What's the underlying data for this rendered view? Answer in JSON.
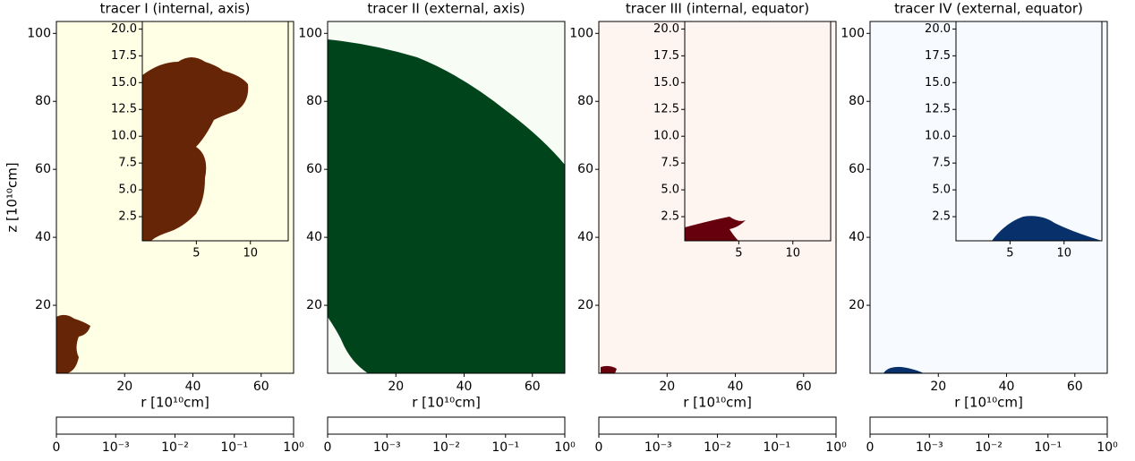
{
  "chart_data": [
    {
      "type": "heatmap",
      "title": "tracer I (internal, axis)",
      "xlabel": "r [10¹⁰cm]",
      "ylabel": "z [10¹⁰cm]",
      "xlim": [
        0,
        69.5
      ],
      "ylim": [
        0,
        103.5
      ],
      "xticks": [
        20,
        40,
        60
      ],
      "yticks": [
        20,
        40,
        60,
        80,
        100
      ],
      "colors": [
        "#ffffe5",
        "#fe9929",
        "#662506"
      ],
      "colorbar": {
        "scale": "symlog",
        "linthresh": 0.001,
        "ticks": [
          0,
          {
            "value": 0.001,
            "label": "10⁻³"
          },
          {
            "value": 0.01,
            "label": "10⁻²"
          },
          {
            "value": 0.1,
            "label": "10⁻¹"
          },
          {
            "value": 1,
            "label": "10⁰"
          }
        ]
      },
      "inset": {
        "xlim": [
          0,
          13.5
        ],
        "ylim": [
          0.25,
          20.7
        ],
        "xticks": [
          5,
          10
        ],
        "yticks": [
          2.5,
          {
            "value": 5,
            "label": "5.0"
          },
          7.5,
          {
            "value": 10,
            "label": "10.0"
          },
          12.5,
          {
            "value": 15,
            "label": "15.0"
          },
          17.5,
          {
            "value": 20,
            "label": "20.0"
          }
        ]
      }
    },
    {
      "type": "heatmap",
      "title": "tracer II (external, axis)",
      "xlabel": "r [10¹⁰cm]",
      "xlim": [
        0,
        69.5
      ],
      "ylim": [
        0,
        103.5
      ],
      "xticks": [
        20,
        40,
        60
      ],
      "yticks": [
        20,
        40,
        60,
        80,
        100
      ],
      "colors": [
        "#f7fcf5",
        "#74c476",
        "#00441b"
      ],
      "colorbar": {
        "scale": "symlog",
        "linthresh": 0.001,
        "ticks": [
          0,
          {
            "value": 0.001,
            "label": "10⁻³"
          },
          {
            "value": 0.01,
            "label": "10⁻²"
          },
          {
            "value": 0.1,
            "label": "10⁻¹"
          },
          {
            "value": 1,
            "label": "10⁰"
          }
        ]
      }
    },
    {
      "type": "heatmap",
      "title": "tracer III (internal, equator)",
      "xlabel": "r [10¹⁰cm]",
      "xlim": [
        0,
        69.5
      ],
      "ylim": [
        0,
        103.5
      ],
      "xticks": [
        20,
        40,
        60
      ],
      "yticks": [
        20,
        40,
        60,
        80,
        100
      ],
      "colors": [
        "#fff5f0",
        "#fb6a4a",
        "#67000d"
      ],
      "colorbar": {
        "scale": "symlog",
        "linthresh": 0.001,
        "ticks": [
          0,
          {
            "value": 0.001,
            "label": "10⁻³"
          },
          {
            "value": 0.01,
            "label": "10⁻²"
          },
          {
            "value": 0.1,
            "label": "10⁻¹"
          },
          {
            "value": 1,
            "label": "10⁰"
          }
        ]
      },
      "inset": {
        "xlim": [
          0,
          13.5
        ],
        "ylim": [
          0.25,
          20.7
        ],
        "xticks": [
          5,
          10
        ],
        "yticks": [
          2.5,
          {
            "value": 5,
            "label": "5.0"
          },
          7.5,
          {
            "value": 10,
            "label": "10.0"
          },
          12.5,
          {
            "value": 15,
            "label": "15.0"
          },
          17.5,
          {
            "value": 20,
            "label": "20.0"
          }
        ]
      }
    },
    {
      "type": "heatmap",
      "title": "tracer IV (external, equator)",
      "xlabel": "r [10¹⁰cm]",
      "xlim": [
        0,
        69.5
      ],
      "ylim": [
        0,
        103.5
      ],
      "xticks": [
        20,
        40,
        60
      ],
      "yticks": [
        20,
        40,
        60,
        80,
        100
      ],
      "colors": [
        "#f7fbff",
        "#6baed6",
        "#08306b"
      ],
      "colorbar": {
        "scale": "symlog",
        "linthresh": 0.001,
        "ticks": [
          0,
          {
            "value": 0.001,
            "label": "10⁻³"
          },
          {
            "value": 0.01,
            "label": "10⁻²"
          },
          {
            "value": 0.1,
            "label": "10⁻¹"
          },
          {
            "value": 1,
            "label": "10⁰"
          }
        ]
      },
      "inset": {
        "xlim": [
          0,
          13.5
        ],
        "ylim": [
          0.25,
          20.7
        ],
        "xticks": [
          5,
          10
        ],
        "yticks": [
          2.5,
          {
            "value": 5,
            "label": "5.0"
          },
          7.5,
          {
            "value": 10,
            "label": "10.0"
          },
          12.5,
          {
            "value": 15,
            "label": "15.0"
          },
          17.5,
          {
            "value": 20,
            "label": "20.0"
          }
        ]
      }
    }
  ]
}
